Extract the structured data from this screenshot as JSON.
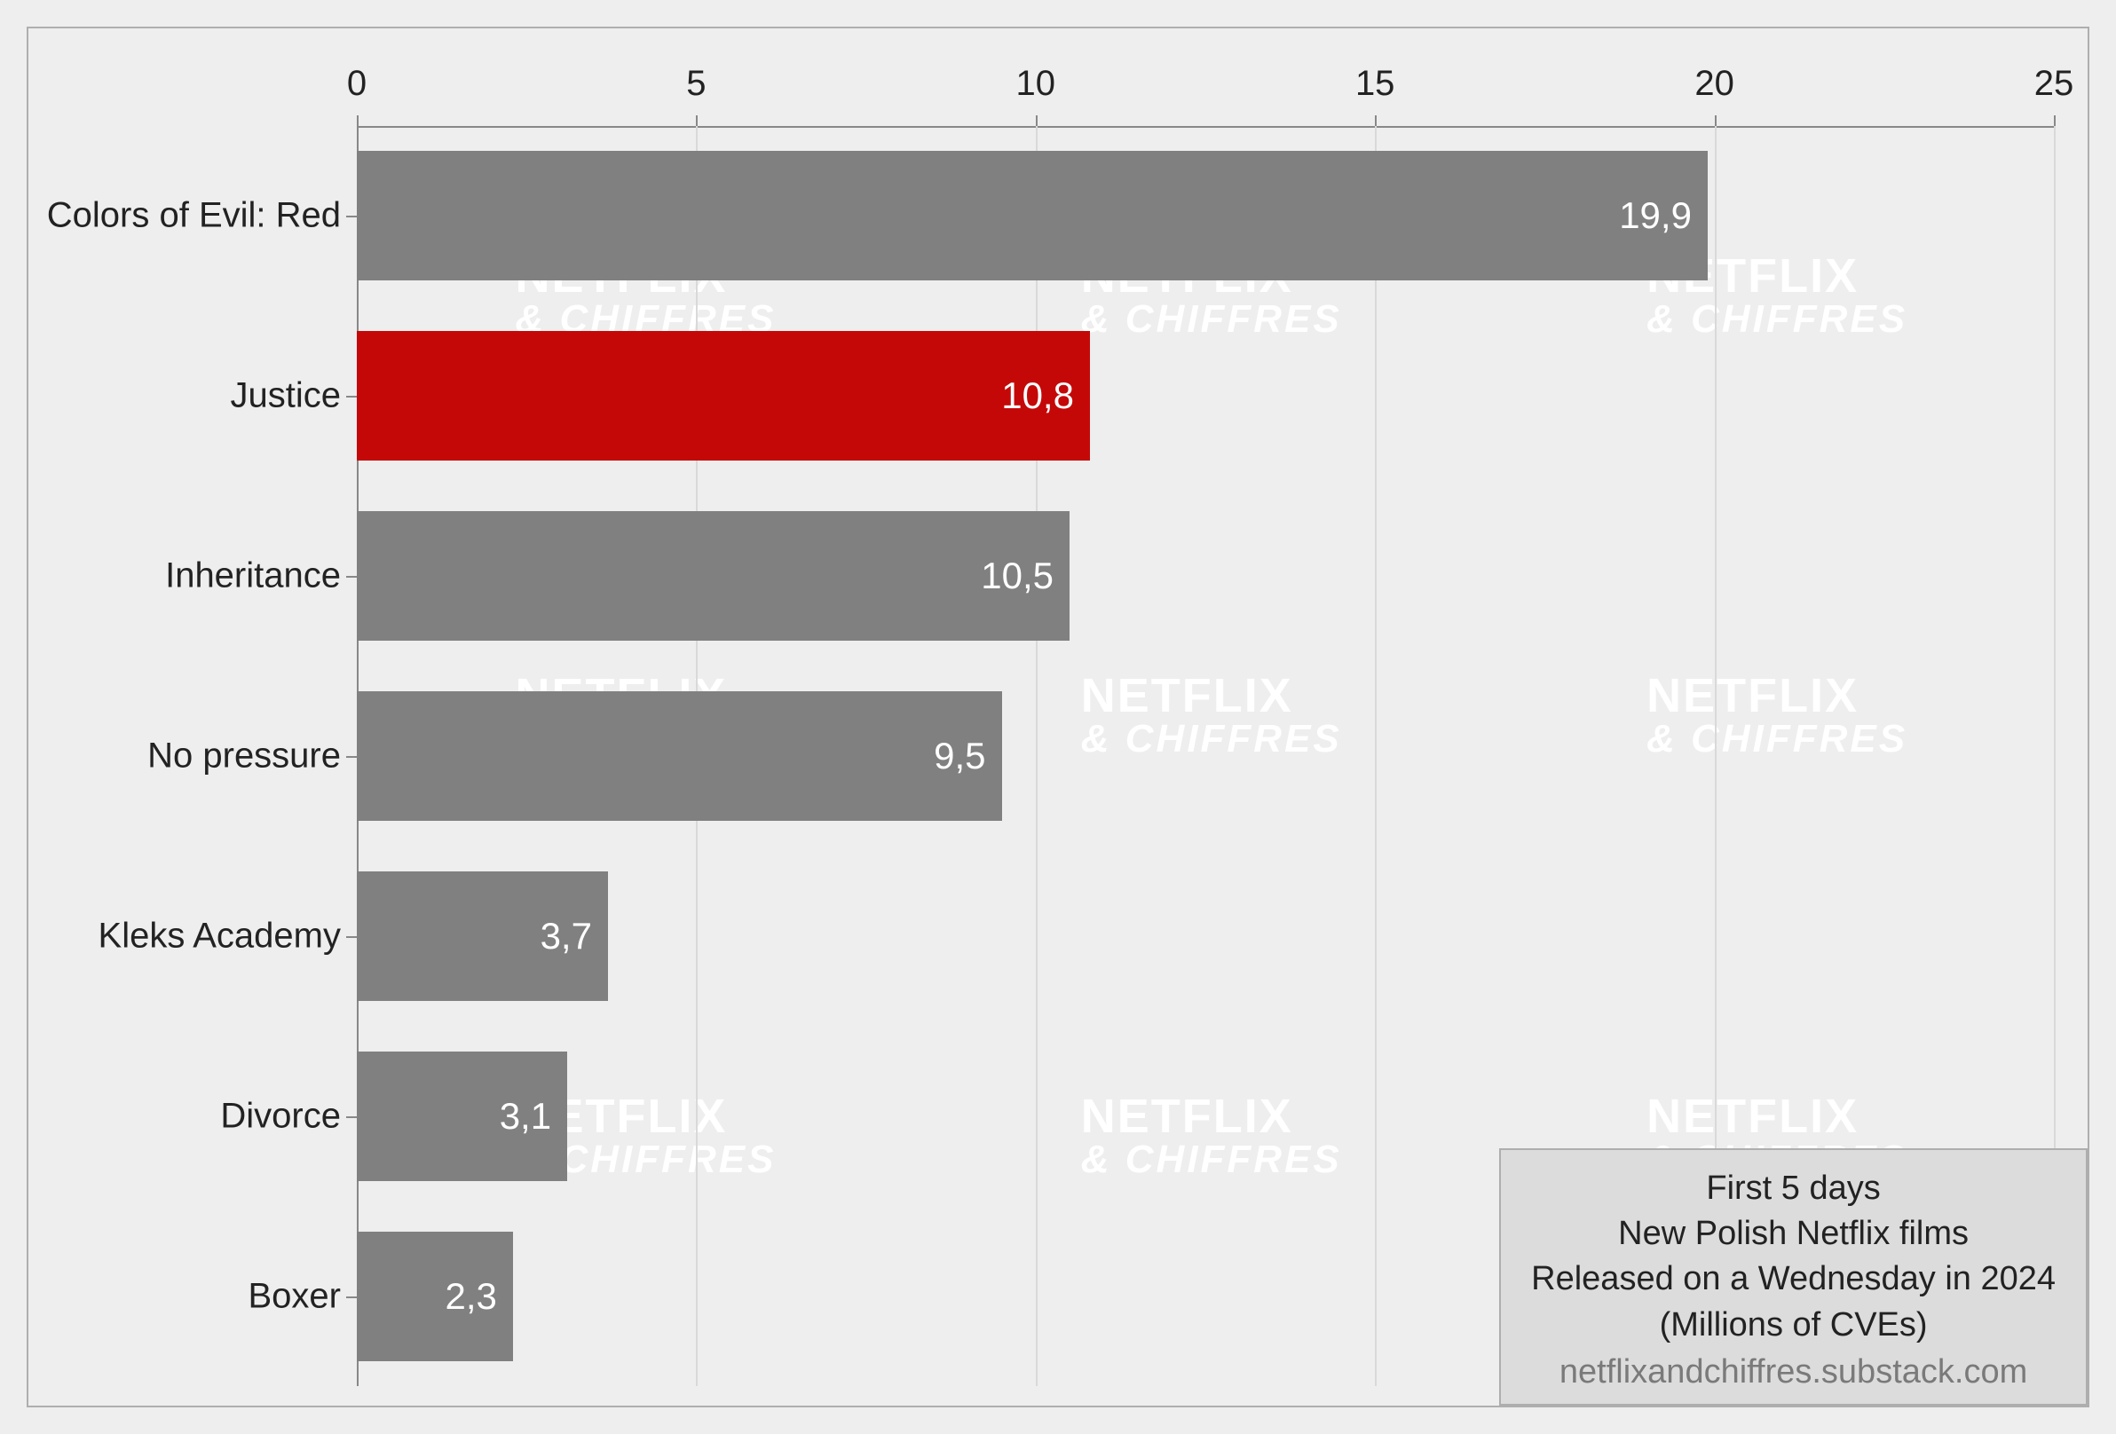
{
  "chart": {
    "type": "bar-horizontal",
    "background_color": "#eeeeee",
    "frame_border_color": "#aeaeae",
    "axis_color": "#888888",
    "grid_color": "#d9d9d9",
    "x": {
      "min": 0,
      "max": 25,
      "ticks": [
        0,
        5,
        10,
        15,
        20,
        25
      ],
      "tick_labels": [
        "0",
        "5",
        "10",
        "15",
        "20",
        "25"
      ],
      "label_fontsize": 40,
      "label_color": "#222222"
    },
    "y": {
      "categories": [
        "Colors of Evil: Red",
        "Justice",
        "Inheritance",
        "No pressure",
        "Kleks Academy",
        "Divorce",
        "Boxer"
      ],
      "label_fontsize": 40,
      "label_color": "#222222"
    },
    "bars": {
      "values": [
        19.9,
        10.8,
        10.5,
        9.5,
        3.7,
        3.1,
        2.3
      ],
      "value_labels": [
        "19,9",
        "10,8",
        "10,5",
        "9,5",
        "3,7",
        "3,1",
        "2,3"
      ],
      "colors": [
        "#808080",
        "#c40808",
        "#808080",
        "#808080",
        "#808080",
        "#808080",
        "#808080"
      ],
      "value_label_color": "#ffffff",
      "value_label_fontsize": 42,
      "bar_height_frac": 0.72,
      "gap_frac": 0.28
    },
    "watermark": {
      "line1": "NETFLIX",
      "line2": "& CHIFFRES",
      "color": "#ffffff",
      "cols": 3,
      "rows": 3
    },
    "caption": {
      "lines": [
        "First 5 days",
        "New Polish Netflix films",
        "Released on a Wednesday in 2024",
        "(Millions of CVEs)"
      ],
      "source": "netflixandchiffres.substack.com",
      "box_bg": "#dcdcdc",
      "box_border": "#aeaeae",
      "text_color": "#222222",
      "source_color": "#7a7a7a",
      "fontsize": 38
    }
  }
}
